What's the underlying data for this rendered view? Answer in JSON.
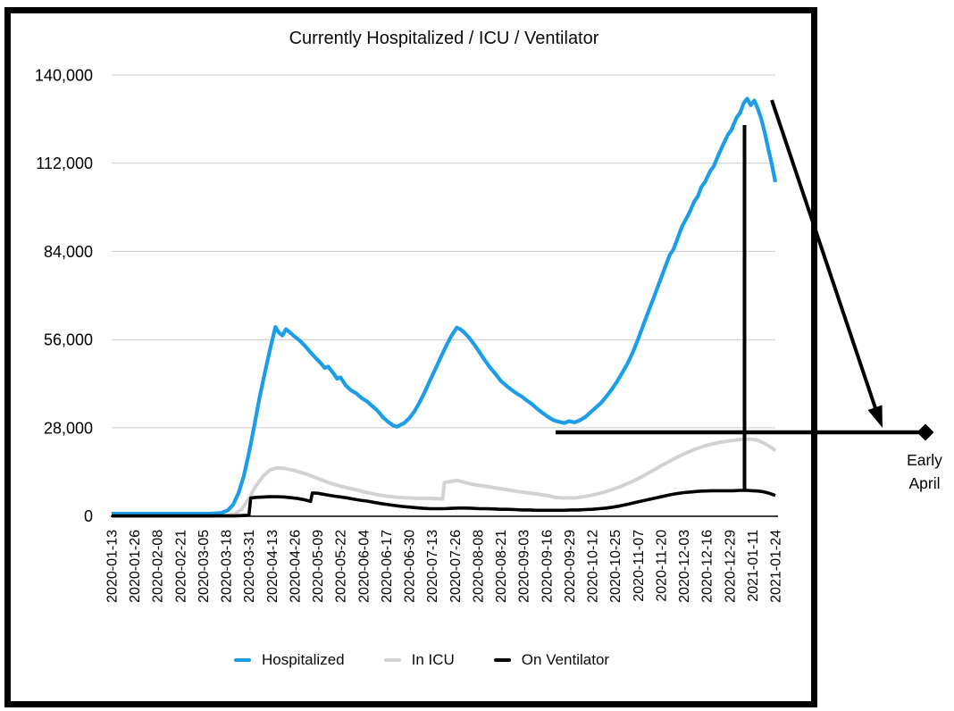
{
  "page": {
    "background": "#ffffff"
  },
  "chart_data": {
    "type": "line",
    "title": "Currently Hospitalized / ICU / Ventilator",
    "x_axis": {
      "tick_interval_days": 13,
      "start_day": 0,
      "end_day": 377,
      "tick_labels": [
        "2020-01-13",
        "2020-01-26",
        "2020-02-08",
        "2020-02-21",
        "2020-03-05",
        "2020-03-18",
        "2020-03-31",
        "2020-04-13",
        "2020-04-26",
        "2020-05-09",
        "2020-05-22",
        "2020-06-04",
        "2020-06-17",
        "2020-06-30",
        "2020-07-13",
        "2020-07-26",
        "2020-08-08",
        "2020-08-21",
        "2020-09-03",
        "2020-09-16",
        "2020-09-29",
        "2020-10-12",
        "2020-10-25",
        "2020-11-07",
        "2020-11-20",
        "2020-12-03",
        "2020-12-16",
        "2020-12-29",
        "2021-01-11",
        "2021-01-24"
      ]
    },
    "y_axis": {
      "range": [
        0,
        140000
      ],
      "grid": true,
      "tick_values": [
        0,
        28000,
        56000,
        84000,
        112000,
        140000
      ],
      "tick_labels": [
        "0",
        "28,000",
        "56,000",
        "84,000",
        "112,000",
        "140,000"
      ]
    },
    "legend": {
      "position": "bottom",
      "items": [
        {
          "label": "Hospitalized",
          "color": "#1b9dea"
        },
        {
          "label": "In ICU",
          "color": "#d2d2d2"
        },
        {
          "label": "On Ventilator",
          "color": "#000000"
        }
      ]
    },
    "annotation": {
      "callout_line1": "Early",
      "callout_line2": "April",
      "reference_value": 28000
    },
    "series": [
      {
        "name": "Hospitalized",
        "color": "#1b9dea",
        "stroke_width": 4.2,
        "z": 2,
        "points": [
          [
            0,
            700
          ],
          [
            14,
            700
          ],
          [
            28,
            700
          ],
          [
            42,
            700
          ],
          [
            56,
            750
          ],
          [
            62,
            900
          ],
          [
            66,
            1800
          ],
          [
            69,
            3600
          ],
          [
            72,
            7200
          ],
          [
            75,
            12500
          ],
          [
            78,
            20000
          ],
          [
            81,
            28500
          ],
          [
            84,
            37500
          ],
          [
            87,
            45500
          ],
          [
            90,
            53000
          ],
          [
            93,
            60000
          ],
          [
            95,
            58200
          ],
          [
            97,
            57300
          ],
          [
            99,
            59300
          ],
          [
            101,
            58400
          ],
          [
            104,
            56900
          ],
          [
            107,
            55600
          ],
          [
            110,
            53900
          ],
          [
            113,
            51900
          ],
          [
            116,
            50100
          ],
          [
            119,
            48400
          ],
          [
            121,
            47000
          ],
          [
            123,
            47400
          ],
          [
            126,
            45300
          ],
          [
            128,
            43600
          ],
          [
            130,
            44000
          ],
          [
            133,
            41400
          ],
          [
            136,
            39900
          ],
          [
            139,
            38900
          ],
          [
            142,
            37400
          ],
          [
            145,
            36400
          ],
          [
            148,
            34900
          ],
          [
            151,
            33400
          ],
          [
            154,
            31400
          ],
          [
            157,
            29900
          ],
          [
            160,
            28700
          ],
          [
            162,
            28300
          ],
          [
            164,
            28900
          ],
          [
            166,
            29400
          ],
          [
            169,
            31000
          ],
          [
            172,
            33200
          ],
          [
            175,
            36200
          ],
          [
            178,
            39500
          ],
          [
            181,
            43200
          ],
          [
            184,
            46800
          ],
          [
            187,
            50400
          ],
          [
            190,
            54000
          ],
          [
            193,
            57200
          ],
          [
            196,
            59800
          ],
          [
            198,
            59300
          ],
          [
            200,
            58400
          ],
          [
            203,
            56600
          ],
          [
            206,
            54400
          ],
          [
            209,
            51900
          ],
          [
            212,
            49400
          ],
          [
            215,
            47100
          ],
          [
            218,
            45100
          ],
          [
            221,
            42900
          ],
          [
            224,
            41400
          ],
          [
            227,
            40100
          ],
          [
            230,
            38900
          ],
          [
            233,
            37900
          ],
          [
            236,
            36600
          ],
          [
            239,
            35400
          ],
          [
            242,
            33900
          ],
          [
            245,
            32600
          ],
          [
            248,
            31400
          ],
          [
            251,
            30400
          ],
          [
            254,
            29900
          ],
          [
            257,
            29500
          ],
          [
            260,
            30100
          ],
          [
            263,
            29700
          ],
          [
            266,
            30400
          ],
          [
            269,
            31400
          ],
          [
            272,
            32900
          ],
          [
            275,
            34400
          ],
          [
            278,
            35900
          ],
          [
            281,
            37900
          ],
          [
            284,
            40100
          ],
          [
            287,
            42600
          ],
          [
            290,
            45400
          ],
          [
            293,
            48400
          ],
          [
            296,
            51900
          ],
          [
            299,
            56100
          ],
          [
            302,
            60600
          ],
          [
            305,
            65100
          ],
          [
            308,
            69400
          ],
          [
            311,
            73900
          ],
          [
            314,
            78400
          ],
          [
            317,
            82900
          ],
          [
            319,
            84500
          ],
          [
            321,
            87400
          ],
          [
            324,
            91900
          ],
          [
            326,
            94000
          ],
          [
            328,
            96100
          ],
          [
            331,
            99900
          ],
          [
            333,
            101500
          ],
          [
            335,
            104500
          ],
          [
            337,
            106000
          ],
          [
            340,
            109500
          ],
          [
            342,
            111000
          ],
          [
            345,
            115000
          ],
          [
            347,
            117500
          ],
          [
            350,
            121000
          ],
          [
            352,
            122500
          ],
          [
            355,
            126500
          ],
          [
            357,
            128000
          ],
          [
            359,
            131000
          ],
          [
            361,
            132500
          ],
          [
            363,
            130400
          ],
          [
            365,
            131900
          ],
          [
            367,
            129400
          ],
          [
            369,
            126100
          ],
          [
            371,
            121600
          ],
          [
            373,
            116600
          ],
          [
            375,
            111600
          ],
          [
            377,
            106000
          ]
        ]
      },
      {
        "name": "In ICU",
        "color": "#d2d2d2",
        "stroke_width": 4,
        "z": 1,
        "points": [
          [
            0,
            0
          ],
          [
            56,
            0
          ],
          [
            66,
            200
          ],
          [
            70,
            700
          ],
          [
            74,
            2200
          ],
          [
            78,
            5600
          ],
          [
            82,
            9600
          ],
          [
            86,
            12600
          ],
          [
            90,
            14600
          ],
          [
            94,
            15300
          ],
          [
            98,
            15100
          ],
          [
            104,
            14400
          ],
          [
            110,
            13400
          ],
          [
            117,
            11900
          ],
          [
            124,
            10400
          ],
          [
            131,
            9300
          ],
          [
            138,
            8400
          ],
          [
            145,
            7400
          ],
          [
            152,
            6600
          ],
          [
            159,
            6100
          ],
          [
            166,
            5800
          ],
          [
            173,
            5600
          ],
          [
            180,
            5600
          ],
          [
            185,
            5500
          ],
          [
            188,
            5400
          ],
          [
            189,
            10600
          ],
          [
            192,
            10900
          ],
          [
            196,
            11300
          ],
          [
            199,
            10900
          ],
          [
            203,
            10300
          ],
          [
            206,
            9900
          ],
          [
            213,
            9400
          ],
          [
            220,
            8700
          ],
          [
            227,
            8100
          ],
          [
            234,
            7500
          ],
          [
            241,
            7000
          ],
          [
            248,
            6400
          ],
          [
            252,
            5900
          ],
          [
            256,
            5700
          ],
          [
            260,
            5700
          ],
          [
            264,
            5800
          ],
          [
            268,
            6100
          ],
          [
            272,
            6500
          ],
          [
            276,
            7000
          ],
          [
            280,
            7600
          ],
          [
            284,
            8300
          ],
          [
            288,
            9100
          ],
          [
            292,
            10000
          ],
          [
            296,
            11000
          ],
          [
            300,
            12100
          ],
          [
            304,
            13300
          ],
          [
            308,
            14600
          ],
          [
            312,
            15900
          ],
          [
            316,
            17100
          ],
          [
            320,
            18300
          ],
          [
            324,
            19400
          ],
          [
            328,
            20400
          ],
          [
            332,
            21300
          ],
          [
            336,
            22100
          ],
          [
            340,
            22700
          ],
          [
            344,
            23200
          ],
          [
            348,
            23600
          ],
          [
            352,
            23900
          ],
          [
            356,
            24200
          ],
          [
            360,
            24400
          ],
          [
            364,
            24300
          ],
          [
            367,
            24000
          ],
          [
            370,
            23300
          ],
          [
            373,
            22300
          ],
          [
            375,
            21600
          ],
          [
            377,
            20800
          ]
        ]
      },
      {
        "name": "On Ventilator",
        "color": "#000000",
        "stroke_width": 3.6,
        "z": 3,
        "points": [
          [
            0,
            0
          ],
          [
            70,
            0
          ],
          [
            77,
            200
          ],
          [
            78,
            300
          ],
          [
            79,
            5700
          ],
          [
            82,
            5900
          ],
          [
            86,
            6000
          ],
          [
            90,
            6100
          ],
          [
            94,
            6100
          ],
          [
            98,
            6000
          ],
          [
            102,
            5800
          ],
          [
            106,
            5500
          ],
          [
            109,
            5200
          ],
          [
            112,
            4800
          ],
          [
            113,
            4600
          ],
          [
            114,
            7300
          ],
          [
            117,
            7200
          ],
          [
            121,
            6800
          ],
          [
            125,
            6400
          ],
          [
            129,
            6100
          ],
          [
            133,
            5800
          ],
          [
            137,
            5400
          ],
          [
            141,
            5000
          ],
          [
            145,
            4700
          ],
          [
            149,
            4300
          ],
          [
            153,
            3900
          ],
          [
            157,
            3600
          ],
          [
            161,
            3300
          ],
          [
            165,
            3000
          ],
          [
            169,
            2800
          ],
          [
            173,
            2600
          ],
          [
            177,
            2400
          ],
          [
            181,
            2300
          ],
          [
            185,
            2300
          ],
          [
            189,
            2300
          ],
          [
            193,
            2400
          ],
          [
            197,
            2500
          ],
          [
            201,
            2500
          ],
          [
            205,
            2400
          ],
          [
            209,
            2300
          ],
          [
            213,
            2300
          ],
          [
            217,
            2200
          ],
          [
            221,
            2100
          ],
          [
            225,
            2100
          ],
          [
            229,
            2000
          ],
          [
            233,
            1900
          ],
          [
            237,
            1900
          ],
          [
            241,
            1800
          ],
          [
            245,
            1800
          ],
          [
            249,
            1800
          ],
          [
            253,
            1800
          ],
          [
            257,
            1800
          ],
          [
            261,
            1900
          ],
          [
            265,
            1900
          ],
          [
            269,
            2000
          ],
          [
            273,
            2100
          ],
          [
            277,
            2300
          ],
          [
            281,
            2500
          ],
          [
            285,
            2800
          ],
          [
            289,
            3200
          ],
          [
            293,
            3700
          ],
          [
            297,
            4200
          ],
          [
            301,
            4700
          ],
          [
            305,
            5200
          ],
          [
            309,
            5700
          ],
          [
            313,
            6200
          ],
          [
            317,
            6700
          ],
          [
            321,
            7100
          ],
          [
            325,
            7400
          ],
          [
            329,
            7600
          ],
          [
            333,
            7800
          ],
          [
            337,
            7900
          ],
          [
            341,
            8000
          ],
          [
            345,
            8000
          ],
          [
            349,
            8000
          ],
          [
            353,
            8000
          ],
          [
            357,
            8100
          ],
          [
            361,
            8100
          ],
          [
            364,
            8000
          ],
          [
            367,
            7900
          ],
          [
            370,
            7700
          ],
          [
            373,
            7300
          ],
          [
            375,
            6900
          ],
          [
            377,
            6500
          ]
        ]
      }
    ]
  }
}
